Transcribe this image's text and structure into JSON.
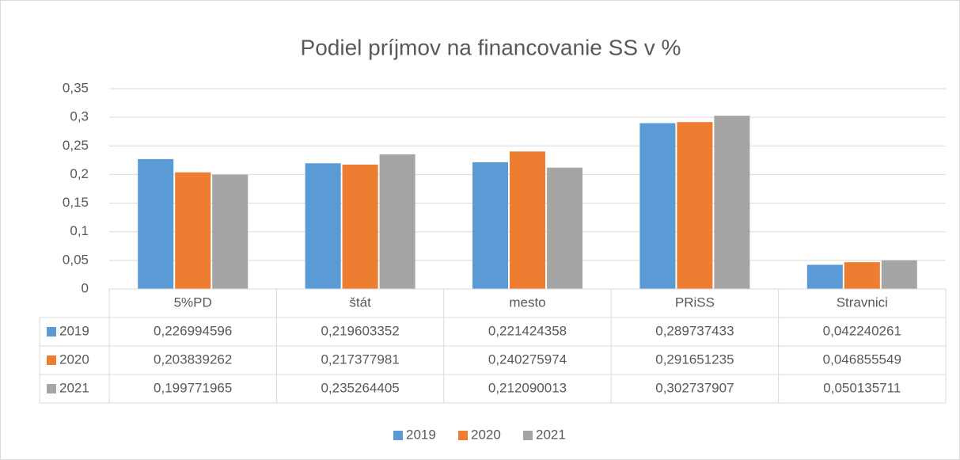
{
  "chart_data": {
    "type": "bar",
    "title": "Podiel príjmov na financovanie SS v %",
    "categories": [
      "5%PD",
      "štát",
      "mesto",
      "PRiSS",
      "Stravnici"
    ],
    "series": [
      {
        "name": "2019",
        "color": "#5b9bd5",
        "values": [
          0.226994596,
          0.219603352,
          0.221424358,
          0.289737433,
          0.042240261
        ],
        "value_labels": [
          "0,226994596",
          "0,219603352",
          "0,221424358",
          "0,289737433",
          "0,042240261"
        ]
      },
      {
        "name": "2020",
        "color": "#ed7d31",
        "values": [
          0.203839262,
          0.217377981,
          0.240275974,
          0.291651235,
          0.046855549
        ],
        "value_labels": [
          "0,203839262",
          "0,217377981",
          "0,240275974",
          "0,291651235",
          "0,046855549"
        ]
      },
      {
        "name": "2021",
        "color": "#a5a5a5",
        "values": [
          0.199771965,
          0.235264405,
          0.212090013,
          0.302737907,
          0.050135711
        ],
        "value_labels": [
          "0,199771965",
          "0,235264405",
          "0,212090013",
          "0,302737907",
          "0,050135711"
        ]
      }
    ],
    "ylim": [
      0,
      0.35
    ],
    "yticks": [
      0,
      {
        "value": 0.05,
        "label": "0,05"
      },
      {
        "value": 0.1,
        "label": "0,1"
      },
      {
        "value": 0.15,
        "label": "0,15"
      },
      {
        "value": 0.2,
        "label": "0,2"
      },
      {
        "value": 0.25,
        "label": "0,25"
      },
      {
        "value": 0.3,
        "label": "0,3"
      },
      {
        "value": 0.35,
        "label": "0,35"
      }
    ],
    "grid": true,
    "legend": "bottom"
  }
}
